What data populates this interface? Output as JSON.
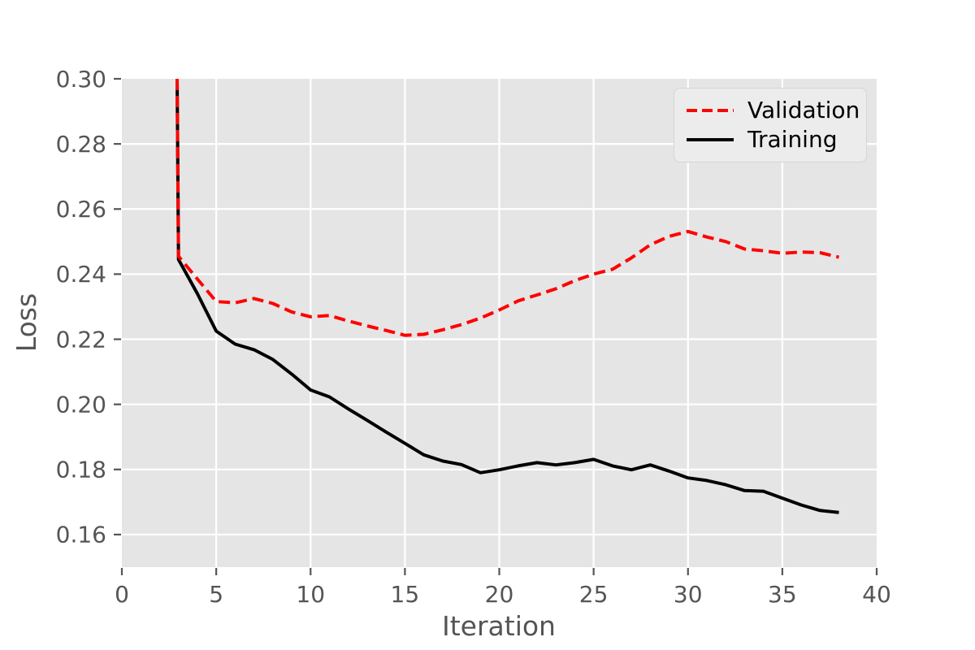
{
  "chart_data": {
    "type": "line",
    "xlabel": "Iteration",
    "ylabel": "Loss",
    "xlim": [
      0,
      40
    ],
    "ylim": [
      0.15,
      0.3
    ],
    "xticks": [
      0,
      5,
      10,
      15,
      20,
      25,
      30,
      35,
      40
    ],
    "xtick_labels": [
      "0",
      "5",
      "10",
      "15",
      "20",
      "25",
      "30",
      "35",
      "40"
    ],
    "yticks": [
      0.16,
      0.18,
      0.2,
      0.22,
      0.24,
      0.26,
      0.28,
      0.3
    ],
    "ytick_labels": [
      "0.16",
      "0.18",
      "0.20",
      "0.22",
      "0.24",
      "0.26",
      "0.28",
      "0.30"
    ],
    "grid": true,
    "legend": {
      "position": "upper right",
      "labels": [
        "Validation",
        "Training"
      ]
    },
    "colors": {
      "figure_bg": "#ffffff",
      "plot_bg": "#e5e5e5",
      "grid": "#ffffff",
      "tick": "#555555",
      "axis_label": "#555555",
      "validation": "#ff0000",
      "training": "#000000",
      "legend_bg": "#ececec",
      "legend_border": "#d5d5d5",
      "legend_text": "#000000"
    },
    "series": [
      {
        "name": "Validation",
        "color": "#ff0000",
        "line_style": "dashed",
        "x": [
          2.93,
          3,
          4,
          5,
          6,
          7,
          8,
          9,
          10,
          11,
          12,
          13,
          14,
          15,
          16,
          17,
          18,
          19,
          20,
          21,
          22,
          23,
          24,
          25,
          26,
          27,
          28,
          29,
          30,
          31,
          32,
          33,
          34,
          35,
          36,
          37,
          38
        ],
        "values": [
          0.3,
          0.2455,
          0.2385,
          0.2316,
          0.2312,
          0.2325,
          0.231,
          0.2284,
          0.2269,
          0.2273,
          0.2256,
          0.2241,
          0.2227,
          0.2212,
          0.2215,
          0.2229,
          0.2245,
          0.2265,
          0.229,
          0.2318,
          0.2336,
          0.2355,
          0.238,
          0.24,
          0.2415,
          0.245,
          0.249,
          0.2516,
          0.2531,
          0.2514,
          0.25,
          0.2477,
          0.2472,
          0.2464,
          0.2468,
          0.2466,
          0.2452
        ]
      },
      {
        "name": "Training",
        "color": "#000000",
        "line_style": "solid",
        "x": [
          2.93,
          3,
          4,
          5,
          6,
          7,
          8,
          9,
          10,
          11,
          12,
          13,
          14,
          15,
          16,
          17,
          18,
          19,
          20,
          21,
          22,
          23,
          24,
          25,
          26,
          27,
          28,
          29,
          30,
          31,
          32,
          33,
          34,
          35,
          36,
          37,
          38
        ],
        "values": [
          0.3,
          0.2445,
          0.234,
          0.2225,
          0.2185,
          0.2168,
          0.2138,
          0.2093,
          0.2044,
          0.2023,
          0.1986,
          0.1951,
          0.1915,
          0.188,
          0.1845,
          0.1826,
          0.1815,
          0.179,
          0.1799,
          0.1811,
          0.1821,
          0.1814,
          0.1821,
          0.1831,
          0.1811,
          0.1799,
          0.1814,
          0.1795,
          0.1774,
          0.1766,
          0.1753,
          0.1735,
          0.1733,
          0.1712,
          0.1691,
          0.1674,
          0.1668
        ]
      }
    ]
  }
}
